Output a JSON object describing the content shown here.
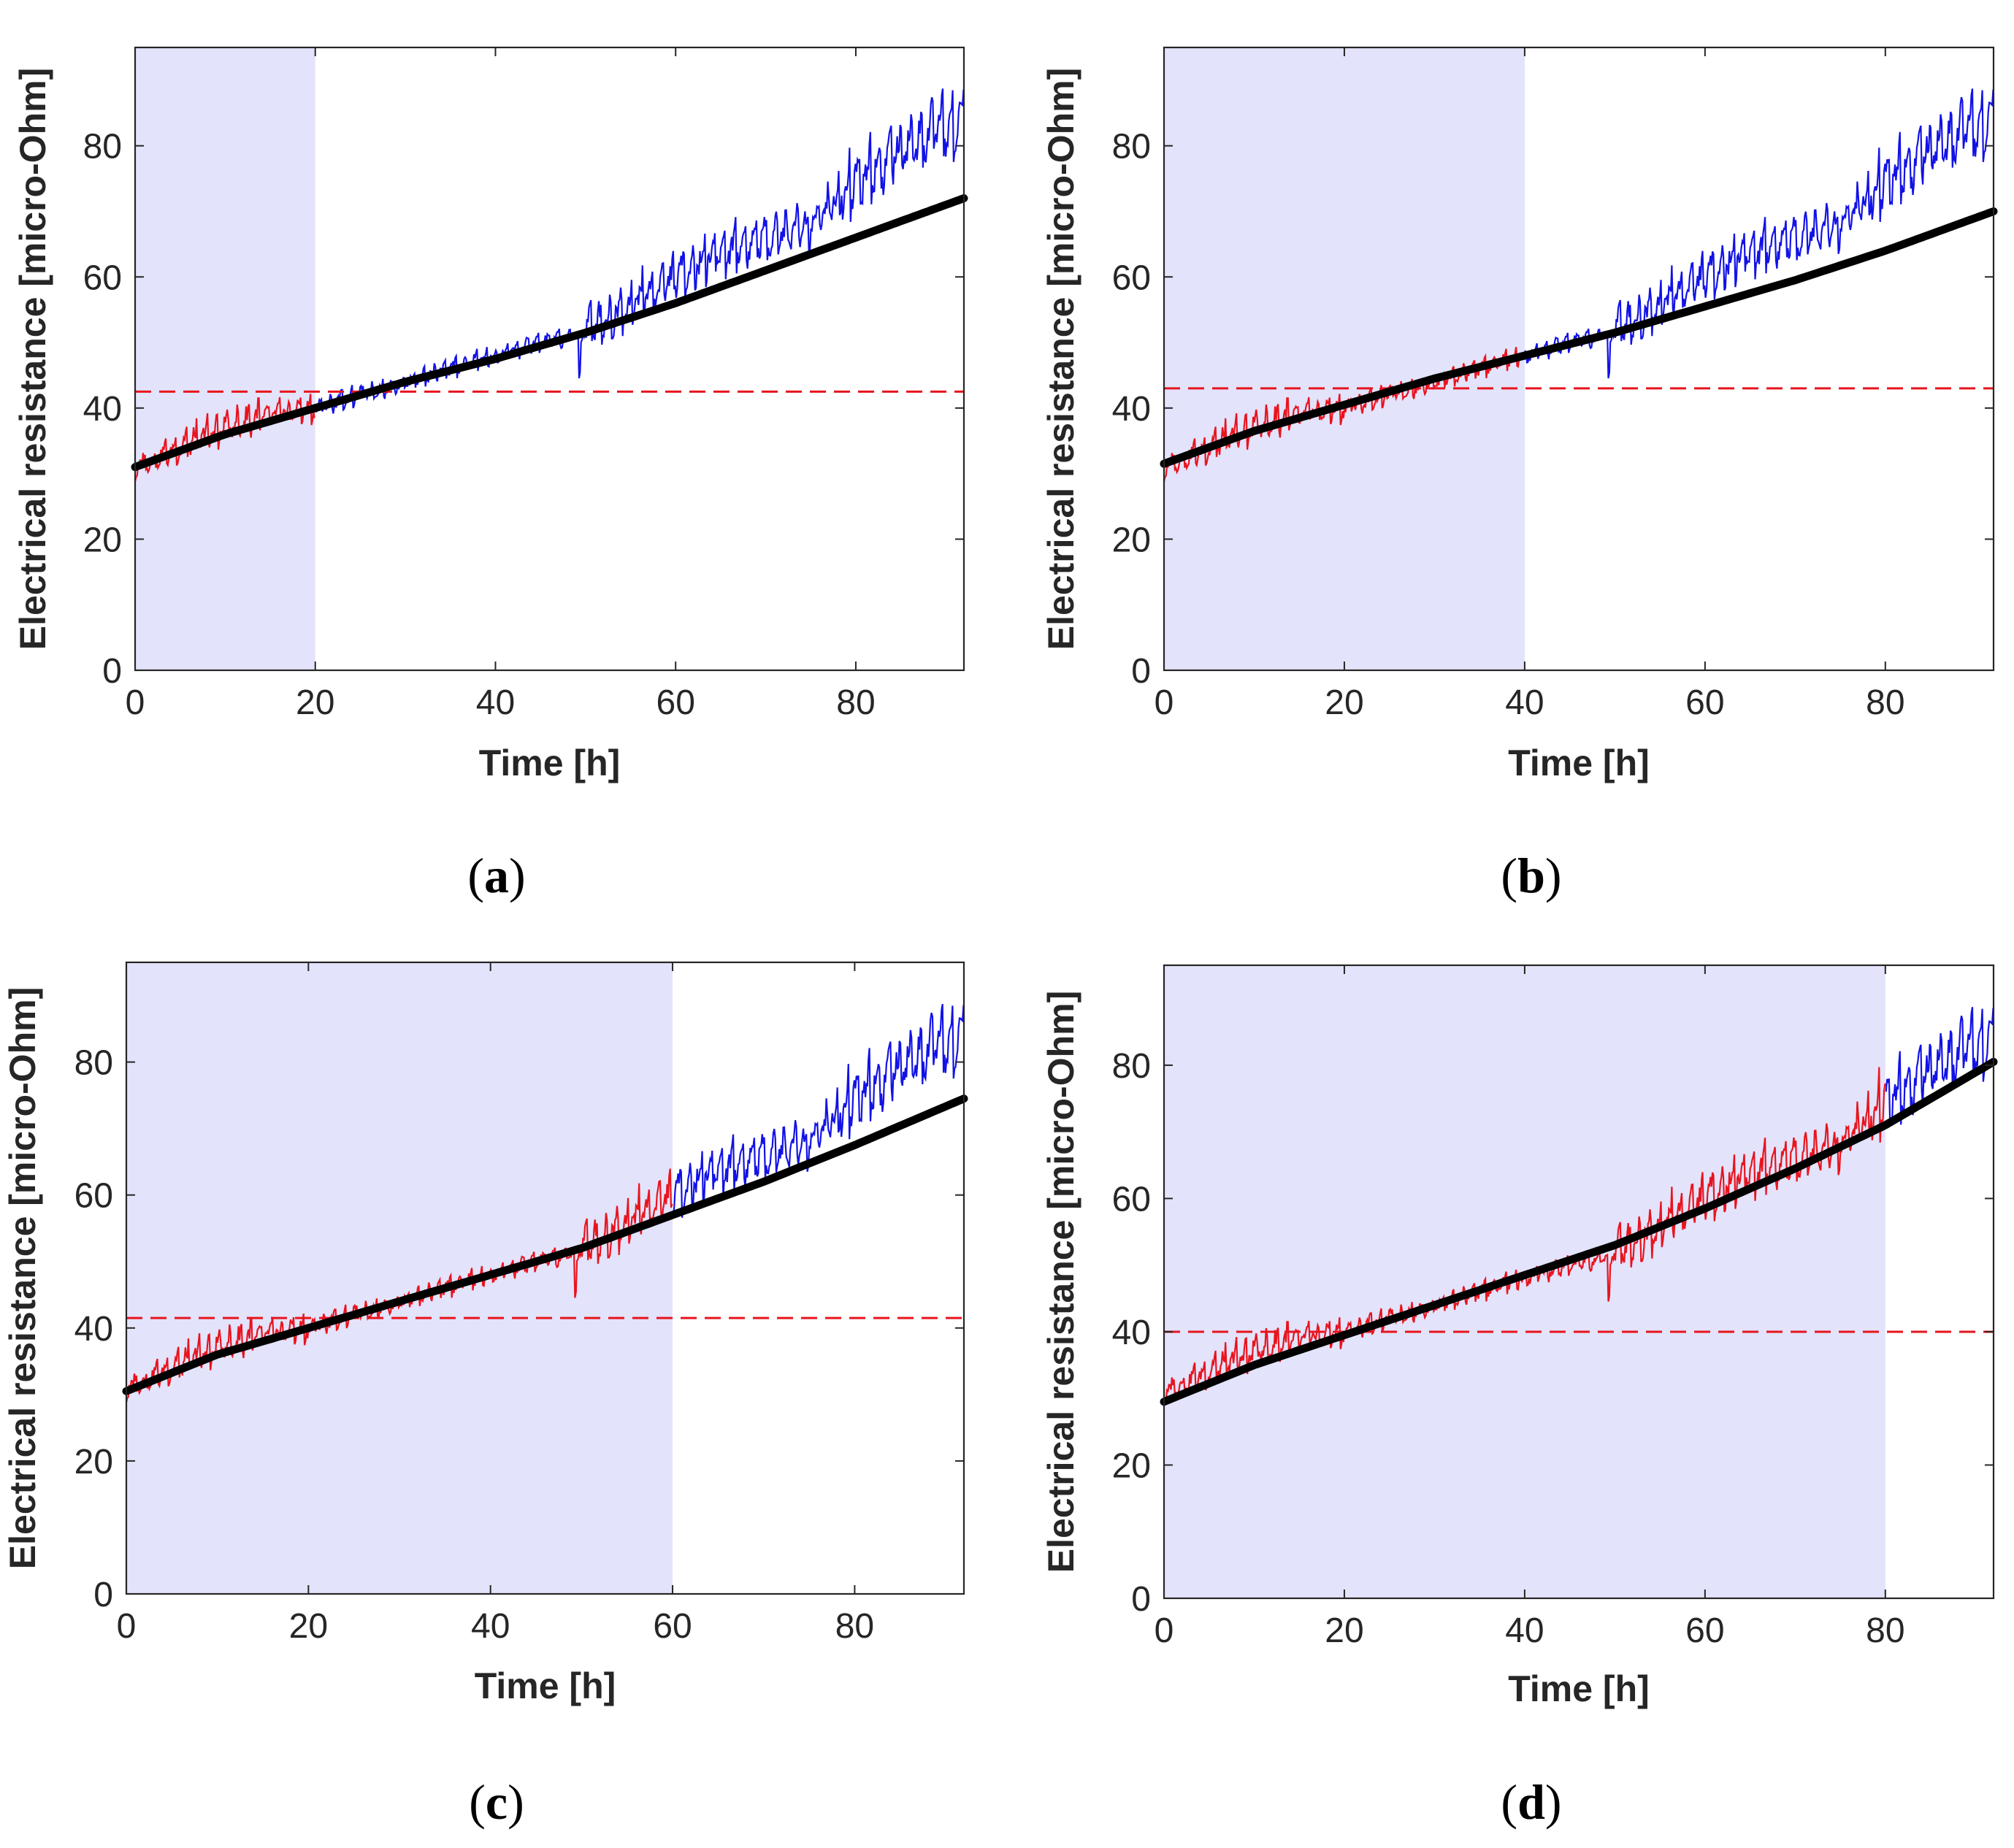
{
  "chart_data": [
    {
      "panel": "a",
      "type": "line",
      "xlabel": "Time [h]",
      "ylabel": "Electrical resistance [micro-Ohm]",
      "xlim": [
        0,
        92
      ],
      "ylim": [
        0,
        95
      ],
      "xticks": [
        0,
        20,
        40,
        60,
        80
      ],
      "yticks": [
        0,
        20,
        40,
        60,
        80
      ],
      "shaded_region": [
        0,
        20
      ],
      "threshold": 42.5,
      "fit_curve": {
        "x": [
          0,
          10,
          20,
          30,
          40,
          50,
          60,
          70,
          80,
          92
        ],
        "y": [
          31,
          36,
          40,
          44,
          47.5,
          51.5,
          56,
          61,
          66,
          72
        ]
      },
      "measured": {
        "x": [
          0,
          5,
          10,
          15,
          20,
          25,
          30,
          35,
          40,
          45,
          49,
          55,
          60,
          65,
          70,
          75,
          80,
          85,
          92
        ],
        "y": [
          31,
          34,
          37,
          39,
          40,
          42,
          44,
          46,
          48,
          50,
          51,
          56,
          60,
          64,
          66,
          68,
          75,
          79,
          84
        ]
      },
      "caption": {
        "open": "(",
        "letter": "a",
        "close": ")"
      }
    },
    {
      "panel": "b",
      "type": "line",
      "xlabel": "Time [h]",
      "ylabel": "Electrical resistance [micro-Ohm]",
      "xlim": [
        0,
        92
      ],
      "ylim": [
        0,
        95
      ],
      "xticks": [
        0,
        20,
        40,
        60,
        80
      ],
      "yticks": [
        0,
        20,
        40,
        60,
        80
      ],
      "shaded_region": [
        0,
        40
      ],
      "threshold": 43,
      "fit_curve": {
        "x": [
          0,
          10,
          20,
          30,
          40,
          50,
          60,
          70,
          80,
          92
        ],
        "y": [
          31.5,
          36.5,
          40.5,
          44.5,
          48,
          51.5,
          55.5,
          59.5,
          64,
          70
        ]
      },
      "measured": {
        "x": [
          0,
          5,
          10,
          15,
          20,
          25,
          30,
          35,
          40,
          45,
          49,
          55,
          60,
          65,
          70,
          75,
          80,
          85,
          92
        ],
        "y": [
          31,
          34,
          37,
          39,
          40,
          42,
          44,
          46,
          48,
          50,
          51,
          56,
          60,
          64,
          66,
          68,
          75,
          79,
          84
        ]
      },
      "caption": {
        "open": "(",
        "letter": "b",
        "close": ")"
      }
    },
    {
      "panel": "c",
      "type": "line",
      "xlabel": "Time [h]",
      "ylabel": "Electrical resistance [micro-Ohm]",
      "xlim": [
        0,
        92
      ],
      "ylim": [
        0,
        95
      ],
      "xticks": [
        0,
        20,
        40,
        60,
        80
      ],
      "yticks": [
        0,
        20,
        40,
        60,
        80
      ],
      "shaded_region": [
        0,
        60
      ],
      "threshold": 41.5,
      "fit_curve": {
        "x": [
          0,
          10,
          20,
          30,
          40,
          50,
          60,
          70,
          80,
          92
        ],
        "y": [
          30.5,
          36,
          40,
          44,
          48,
          52,
          57,
          62,
          67.5,
          74.5
        ]
      },
      "measured": {
        "x": [
          0,
          5,
          10,
          15,
          20,
          25,
          30,
          35,
          40,
          45,
          49,
          55,
          60,
          65,
          70,
          75,
          80,
          85,
          92
        ],
        "y": [
          31,
          34,
          37,
          39,
          40,
          42,
          44,
          46,
          48,
          50,
          51,
          56,
          60,
          64,
          66,
          68,
          75,
          79,
          84
        ]
      },
      "caption": {
        "open": "(",
        "letter": "c",
        "close": ")"
      }
    },
    {
      "panel": "d",
      "type": "line",
      "xlabel": "Time [h]",
      "ylabel": "Electrical resistance [micro-Ohm]",
      "xlim": [
        0,
        92
      ],
      "ylim": [
        0,
        95
      ],
      "xticks": [
        0,
        20,
        40,
        60,
        80
      ],
      "yticks": [
        0,
        20,
        40,
        60,
        80
      ],
      "shaded_region": [
        0,
        80
      ],
      "threshold": 40,
      "fit_curve": {
        "x": [
          0,
          10,
          20,
          30,
          40,
          50,
          60,
          70,
          80,
          92
        ],
        "y": [
          29.5,
          35,
          39.5,
          44,
          48.5,
          53,
          58.5,
          64.5,
          71,
          80.5
        ]
      },
      "measured": {
        "x": [
          0,
          5,
          10,
          15,
          20,
          25,
          30,
          35,
          40,
          45,
          49,
          55,
          60,
          65,
          70,
          75,
          80,
          85,
          92
        ],
        "y": [
          31,
          34,
          37,
          39,
          40,
          42,
          44,
          46,
          48,
          50,
          51,
          56,
          60,
          64,
          66,
          68,
          75,
          79,
          84
        ]
      },
      "caption": {
        "open": "(",
        "letter": "d",
        "close": ")"
      }
    }
  ],
  "colors": {
    "shade": "#e3e3fb",
    "predicted": "#e8141e",
    "future": "#1212e6",
    "fit": "#000000",
    "threshold": "#e8141e",
    "axis": "#262626"
  }
}
